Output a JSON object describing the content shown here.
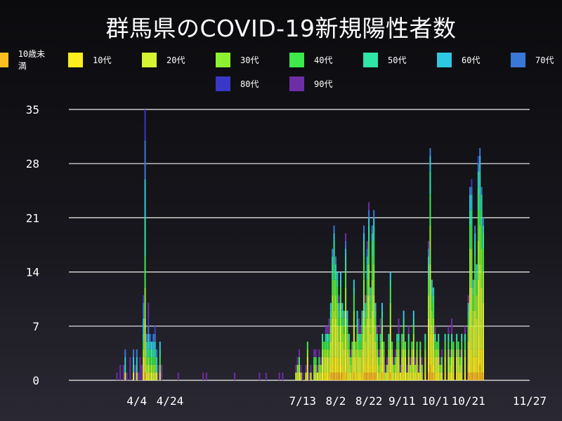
{
  "title": "群馬県のCOVID-19新規陽性者数",
  "chart_data": {
    "type": "bar",
    "stacked": true,
    "title": "群馬県のCOVID-19新規陽性者数",
    "xlabel": "",
    "ylabel": "",
    "ylim": [
      0,
      35
    ],
    "yticks": [
      0,
      7,
      14,
      21,
      28,
      35
    ],
    "grid": "horizontal",
    "legend_position": "top-center",
    "xtick_labels": [
      {
        "day": 11,
        "label": "4/4"
      },
      {
        "day": 31,
        "label": "4/24"
      },
      {
        "day": 111,
        "label": "7/13"
      },
      {
        "day": 131,
        "label": "8/2"
      },
      {
        "day": 151,
        "label": "8/22"
      },
      {
        "day": 171,
        "label": "9/11"
      },
      {
        "day": 191,
        "label": "10/1"
      },
      {
        "day": 211,
        "label": "10/21"
      },
      {
        "day": 248,
        "label": "11/27"
      }
    ],
    "day_range": [
      -30,
      248
    ],
    "series": [
      {
        "name": "10歳未満",
        "color": "#fbbf24"
      },
      {
        "name": "10代",
        "color": "#fbee1f"
      },
      {
        "name": "20代",
        "color": "#d6f433"
      },
      {
        "name": "30代",
        "color": "#8cf230"
      },
      {
        "name": "40代",
        "color": "#3ee84a"
      },
      {
        "name": "50代",
        "color": "#2ee6a6"
      },
      {
        "name": "60代",
        "color": "#2ec9e0"
      },
      {
        "name": "70代",
        "color": "#3a78d8"
      },
      {
        "name": "80代",
        "color": "#3a36c8"
      },
      {
        "name": "90代",
        "color": "#6e2ea8"
      }
    ],
    "daily_totals": [
      [
        -1,
        1
      ],
      [
        1,
        2
      ],
      [
        3,
        2
      ],
      [
        4,
        4
      ],
      [
        5,
        1
      ],
      [
        7,
        3
      ],
      [
        9,
        4
      ],
      [
        10,
        2
      ],
      [
        11,
        4
      ],
      [
        12,
        1
      ],
      [
        13,
        3
      ],
      [
        14,
        2
      ],
      [
        15,
        11
      ],
      [
        16,
        35
      ],
      [
        17,
        6
      ],
      [
        18,
        10
      ],
      [
        19,
        6
      ],
      [
        20,
        5
      ],
      [
        21,
        6
      ],
      [
        22,
        7
      ],
      [
        23,
        4
      ],
      [
        24,
        2
      ],
      [
        25,
        5
      ],
      [
        26,
        2
      ],
      [
        36,
        1
      ],
      [
        51,
        1
      ],
      [
        53,
        1
      ],
      [
        70,
        1
      ],
      [
        85,
        1
      ],
      [
        89,
        1
      ],
      [
        97,
        1
      ],
      [
        99,
        1
      ],
      [
        107,
        2
      ],
      [
        108,
        3
      ],
      [
        109,
        4
      ],
      [
        110,
        2
      ],
      [
        111,
        1
      ],
      [
        113,
        2
      ],
      [
        114,
        5
      ],
      [
        115,
        1
      ],
      [
        116,
        2
      ],
      [
        118,
        4
      ],
      [
        119,
        4
      ],
      [
        120,
        2
      ],
      [
        121,
        4
      ],
      [
        122,
        3
      ],
      [
        123,
        6
      ],
      [
        124,
        5
      ],
      [
        125,
        7
      ],
      [
        126,
        7
      ],
      [
        127,
        8
      ],
      [
        128,
        10
      ],
      [
        129,
        17
      ],
      [
        130,
        20
      ],
      [
        131,
        16
      ],
      [
        132,
        14
      ],
      [
        133,
        11
      ],
      [
        134,
        14
      ],
      [
        135,
        10
      ],
      [
        136,
        9
      ],
      [
        137,
        19
      ],
      [
        138,
        9
      ],
      [
        139,
        6
      ],
      [
        140,
        4
      ],
      [
        141,
        5
      ],
      [
        142,
        13
      ],
      [
        143,
        5
      ],
      [
        144,
        9
      ],
      [
        145,
        8
      ],
      [
        146,
        7
      ],
      [
        147,
        9
      ],
      [
        148,
        20
      ],
      [
        149,
        11
      ],
      [
        150,
        18
      ],
      [
        151,
        23
      ],
      [
        152,
        12
      ],
      [
        153,
        20
      ],
      [
        154,
        22
      ],
      [
        155,
        10
      ],
      [
        156,
        7
      ],
      [
        157,
        4
      ],
      [
        158,
        8
      ],
      [
        159,
        10
      ],
      [
        160,
        5
      ],
      [
        161,
        2
      ],
      [
        162,
        3
      ],
      [
        163,
        6
      ],
      [
        164,
        14
      ],
      [
        165,
        5
      ],
      [
        166,
        3
      ],
      [
        167,
        4
      ],
      [
        168,
        6
      ],
      [
        169,
        8
      ],
      [
        170,
        2
      ],
      [
        171,
        6
      ],
      [
        172,
        9
      ],
      [
        173,
        5
      ],
      [
        174,
        2
      ],
      [
        175,
        7
      ],
      [
        176,
        3
      ],
      [
        177,
        5
      ],
      [
        178,
        9
      ],
      [
        179,
        3
      ],
      [
        180,
        5
      ],
      [
        181,
        2
      ],
      [
        182,
        5
      ],
      [
        183,
        3
      ],
      [
        185,
        6
      ],
      [
        187,
        18
      ],
      [
        188,
        30
      ],
      [
        189,
        13
      ],
      [
        190,
        12
      ],
      [
        191,
        7
      ],
      [
        192,
        5
      ],
      [
        193,
        6
      ],
      [
        194,
        3
      ],
      [
        195,
        4
      ],
      [
        197,
        6
      ],
      [
        199,
        7
      ],
      [
        200,
        4
      ],
      [
        201,
        8
      ],
      [
        202,
        5
      ],
      [
        204,
        6
      ],
      [
        205,
        5
      ],
      [
        206,
        4
      ],
      [
        207,
        6
      ],
      [
        209,
        7
      ],
      [
        211,
        11
      ],
      [
        212,
        25
      ],
      [
        213,
        26
      ],
      [
        214,
        13
      ],
      [
        215,
        20
      ],
      [
        216,
        15
      ],
      [
        217,
        29
      ],
      [
        218,
        30
      ],
      [
        219,
        25
      ],
      [
        220,
        21
      ]
    ]
  }
}
